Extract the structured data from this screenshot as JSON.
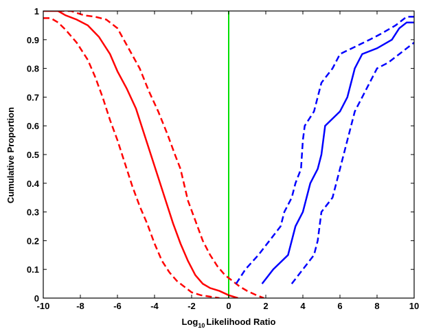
{
  "chart_data": {
    "type": "line",
    "title": "",
    "xlabel": "Likelihood Ratio",
    "xlabel_prefix": "Log",
    "xlabel_subscript": "10",
    "ylabel": "Cumulative Proportion",
    "xlim": [
      -10,
      10
    ],
    "ylim": [
      0,
      1
    ],
    "grid": false,
    "legend": "none",
    "x_ticks": [
      -10,
      -8,
      -6,
      -4,
      -2,
      0,
      2,
      4,
      6,
      8,
      10
    ],
    "y_ticks": [
      0,
      0.1,
      0.2,
      0.3,
      0.4,
      0.5,
      0.6,
      0.7,
      0.8,
      0.9,
      1
    ],
    "y_tick_labels": [
      "0",
      "0.1",
      "0.2",
      "0.3",
      "0.4",
      "0.5",
      "0.6",
      "0.7",
      "0.8",
      "0.9",
      "1"
    ],
    "reference_line": {
      "x": 0,
      "color": "#00e000"
    },
    "series": [
      {
        "color": "#ff0000",
        "style": "solid",
        "points": [
          [
            -10,
            1.0
          ],
          [
            -9.2,
            1.0
          ],
          [
            -8.8,
            0.985
          ],
          [
            -8.2,
            0.97
          ],
          [
            -7.6,
            0.95
          ],
          [
            -7.0,
            0.91
          ],
          [
            -6.4,
            0.85
          ],
          [
            -6.0,
            0.79
          ],
          [
            -5.5,
            0.73
          ],
          [
            -5.0,
            0.66
          ],
          [
            -4.6,
            0.58
          ],
          [
            -4.2,
            0.5
          ],
          [
            -3.8,
            0.42
          ],
          [
            -3.4,
            0.34
          ],
          [
            -3.0,
            0.26
          ],
          [
            -2.6,
            0.19
          ],
          [
            -2.2,
            0.13
          ],
          [
            -1.8,
            0.08
          ],
          [
            -1.4,
            0.05
          ],
          [
            -1.0,
            0.035
          ],
          [
            -0.5,
            0.025
          ],
          [
            0,
            0.01
          ],
          [
            0.5,
            0.0
          ]
        ]
      },
      {
        "color": "#ff0000",
        "style": "dashed",
        "points": [
          [
            -10,
            0.975
          ],
          [
            -9.6,
            0.975
          ],
          [
            -9.2,
            0.96
          ],
          [
            -8.8,
            0.935
          ],
          [
            -8.2,
            0.89
          ],
          [
            -7.6,
            0.83
          ],
          [
            -7.2,
            0.77
          ],
          [
            -6.8,
            0.7
          ],
          [
            -6.4,
            0.62
          ],
          [
            -6.0,
            0.55
          ],
          [
            -5.6,
            0.47
          ],
          [
            -5.2,
            0.39
          ],
          [
            -4.8,
            0.32
          ],
          [
            -4.4,
            0.26
          ],
          [
            -4.0,
            0.19
          ],
          [
            -3.6,
            0.13
          ],
          [
            -3.2,
            0.09
          ],
          [
            -2.8,
            0.06
          ],
          [
            -2.4,
            0.04
          ],
          [
            -2.0,
            0.02
          ],
          [
            -1.5,
            0.01
          ],
          [
            -1.0,
            0.005
          ],
          [
            -0.5,
            0.0
          ]
        ]
      },
      {
        "color": "#ff0000",
        "style": "dashed",
        "points": [
          [
            -9.2,
            1.0
          ],
          [
            -8.5,
            1.0
          ],
          [
            -7.8,
            0.985
          ],
          [
            -7.2,
            0.98
          ],
          [
            -6.6,
            0.97
          ],
          [
            -6.0,
            0.94
          ],
          [
            -5.4,
            0.87
          ],
          [
            -4.8,
            0.8
          ],
          [
            -4.3,
            0.72
          ],
          [
            -3.8,
            0.65
          ],
          [
            -3.3,
            0.57
          ],
          [
            -2.9,
            0.5
          ],
          [
            -2.6,
            0.45
          ],
          [
            -2.2,
            0.34
          ],
          [
            -1.8,
            0.27
          ],
          [
            -1.4,
            0.2
          ],
          [
            -1.0,
            0.15
          ],
          [
            -0.6,
            0.11
          ],
          [
            -0.2,
            0.08
          ],
          [
            0.2,
            0.06
          ],
          [
            0.6,
            0.04
          ],
          [
            1.0,
            0.025
          ],
          [
            1.5,
            0.01
          ],
          [
            1.9,
            0.0
          ]
        ]
      },
      {
        "color": "#0000ff",
        "style": "solid",
        "points": [
          [
            1.8,
            0.05
          ],
          [
            2.4,
            0.1
          ],
          [
            3.2,
            0.15
          ],
          [
            3.6,
            0.25
          ],
          [
            4.0,
            0.3
          ],
          [
            4.2,
            0.35
          ],
          [
            4.4,
            0.4
          ],
          [
            4.8,
            0.45
          ],
          [
            5.0,
            0.5
          ],
          [
            5.2,
            0.6
          ],
          [
            6.0,
            0.65
          ],
          [
            6.4,
            0.7
          ],
          [
            6.6,
            0.75
          ],
          [
            6.8,
            0.8
          ],
          [
            7.2,
            0.85
          ],
          [
            8.0,
            0.87
          ],
          [
            8.8,
            0.9
          ],
          [
            9.2,
            0.94
          ],
          [
            9.6,
            0.96
          ],
          [
            10.0,
            0.96
          ]
        ]
      },
      {
        "color": "#0000ff",
        "style": "dashed",
        "points": [
          [
            0.4,
            0.05
          ],
          [
            0.9,
            0.1
          ],
          [
            1.6,
            0.15
          ],
          [
            2.2,
            0.2
          ],
          [
            2.8,
            0.25
          ],
          [
            3.0,
            0.3
          ],
          [
            3.4,
            0.35
          ],
          [
            3.6,
            0.4
          ],
          [
            3.9,
            0.45
          ],
          [
            4.0,
            0.55
          ],
          [
            4.1,
            0.6
          ],
          [
            4.6,
            0.65
          ],
          [
            4.8,
            0.7
          ],
          [
            5.0,
            0.75
          ],
          [
            5.6,
            0.8
          ],
          [
            6.0,
            0.85
          ],
          [
            7.6,
            0.9
          ],
          [
            8.2,
            0.92
          ],
          [
            9.0,
            0.95
          ],
          [
            9.6,
            0.98
          ],
          [
            10.0,
            0.98
          ]
        ]
      },
      {
        "color": "#0000ff",
        "style": "dashed",
        "points": [
          [
            3.4,
            0.05
          ],
          [
            4.0,
            0.1
          ],
          [
            4.6,
            0.15
          ],
          [
            4.8,
            0.2
          ],
          [
            4.9,
            0.25
          ],
          [
            5.0,
            0.3
          ],
          [
            5.6,
            0.35
          ],
          [
            5.8,
            0.4
          ],
          [
            6.0,
            0.45
          ],
          [
            6.2,
            0.5
          ],
          [
            6.4,
            0.55
          ],
          [
            6.6,
            0.6
          ],
          [
            6.8,
            0.65
          ],
          [
            7.2,
            0.7
          ],
          [
            7.6,
            0.75
          ],
          [
            8.0,
            0.8
          ],
          [
            8.6,
            0.82
          ],
          [
            9.2,
            0.85
          ],
          [
            9.6,
            0.87
          ],
          [
            10.0,
            0.89
          ]
        ]
      }
    ]
  }
}
